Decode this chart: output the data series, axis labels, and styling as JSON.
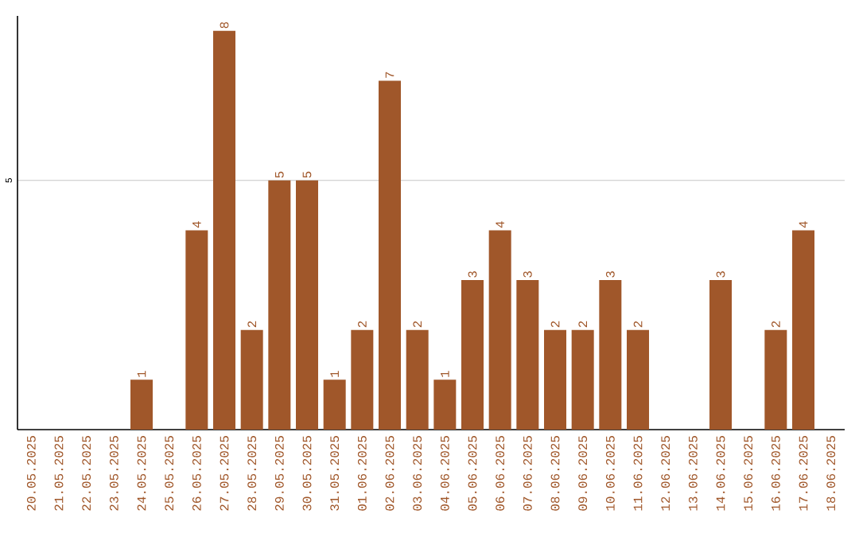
{
  "chart_data": {
    "type": "bar",
    "categories": [
      "20.05.2025",
      "21.05.2025",
      "22.05.2025",
      "23.05.2025",
      "24.05.2025",
      "25.05.2025",
      "26.05.2025",
      "27.05.2025",
      "28.05.2025",
      "29.05.2025",
      "30.05.2025",
      "31.05.2025",
      "01.06.2025",
      "02.06.2025",
      "03.06.2025",
      "04.06.2025",
      "05.06.2025",
      "06.06.2025",
      "07.06.2025",
      "08.06.2025",
      "09.06.2025",
      "10.06.2025",
      "11.06.2025",
      "12.06.2025",
      "13.06.2025",
      "14.06.2025",
      "15.06.2025",
      "16.06.2025",
      "17.06.2025",
      "18.06.2025"
    ],
    "values": [
      0,
      0,
      0,
      0,
      1,
      0,
      4,
      8,
      2,
      5,
      5,
      1,
      2,
      7,
      2,
      1,
      3,
      4,
      3,
      2,
      2,
      3,
      2,
      0,
      0,
      3,
      0,
      2,
      4,
      0
    ],
    "value_labels": [
      null,
      null,
      null,
      null,
      "1",
      null,
      "4",
      "8",
      "2",
      "5",
      "5",
      "1",
      "2",
      "7",
      "2",
      "1",
      "3",
      "4",
      "3",
      "2",
      "2",
      "3",
      "2",
      null,
      null,
      "3",
      null,
      "2",
      "4",
      null
    ],
    "color": "#a0572a",
    "ylim": [
      0,
      8.3
    ],
    "yticks": [
      5
    ],
    "grid": "y"
  }
}
